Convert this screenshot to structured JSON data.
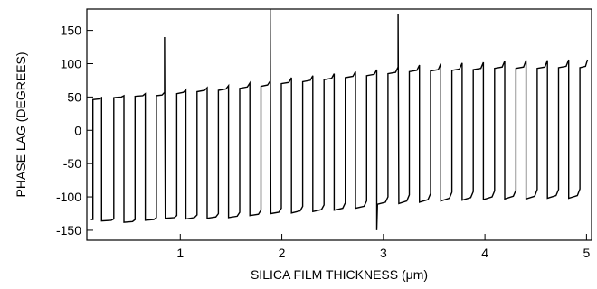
{
  "chart_data": {
    "type": "line",
    "title": "",
    "xlabel": "SILICA FILM THICKNESS (μm)",
    "ylabel": "PHASE LAG (DEGREES)",
    "xlim": [
      0.08,
      5.05
    ],
    "ylim": [
      -165,
      182
    ],
    "xticks": [
      1,
      2,
      3,
      4,
      5
    ],
    "yticks": [
      150,
      100,
      50,
      0,
      -50,
      -100,
      -150
    ],
    "grid": false,
    "legend": "none",
    "line_color": "#000000",
    "series": [
      {
        "values": [
          {
            "x": 0.12,
            "y": -134
          },
          {
            "x": 0.14,
            "y": -134
          },
          {
            "x": 0.14,
            "y": 46
          },
          {
            "x": 0.2,
            "y": 47
          },
          {
            "x": 0.225,
            "y": 49
          },
          {
            "x": 0.225,
            "y": -136
          },
          {
            "x": 0.32,
            "y": -135
          },
          {
            "x": 0.345,
            "y": -133
          },
          {
            "x": 0.345,
            "y": 49
          },
          {
            "x": 0.42,
            "y": 50
          },
          {
            "x": 0.445,
            "y": 52
          },
          {
            "x": 0.445,
            "y": -138
          },
          {
            "x": 0.53,
            "y": -137
          },
          {
            "x": 0.555,
            "y": -134
          },
          {
            "x": 0.555,
            "y": 51
          },
          {
            "x": 0.63,
            "y": 52
          },
          {
            "x": 0.655,
            "y": 55
          },
          {
            "x": 0.655,
            "y": -135
          },
          {
            "x": 0.74,
            "y": -134
          },
          {
            "x": 0.765,
            "y": -131
          },
          {
            "x": 0.765,
            "y": 52
          },
          {
            "x": 0.82,
            "y": 53
          },
          {
            "x": 0.845,
            "y": 57
          },
          {
            "x": 0.845,
            "y": 140
          },
          {
            "x": 0.852,
            "y": -132
          },
          {
            "x": 0.94,
            "y": -131
          },
          {
            "x": 0.965,
            "y": -128
          },
          {
            "x": 0.965,
            "y": 55
          },
          {
            "x": 1.03,
            "y": 57
          },
          {
            "x": 1.055,
            "y": 61
          },
          {
            "x": 1.055,
            "y": -133
          },
          {
            "x": 1.14,
            "y": -131
          },
          {
            "x": 1.165,
            "y": -127
          },
          {
            "x": 1.165,
            "y": 58
          },
          {
            "x": 1.24,
            "y": 60
          },
          {
            "x": 1.265,
            "y": 64
          },
          {
            "x": 1.265,
            "y": -132
          },
          {
            "x": 1.35,
            "y": -130
          },
          {
            "x": 1.375,
            "y": -125
          },
          {
            "x": 1.375,
            "y": 60
          },
          {
            "x": 1.45,
            "y": 62
          },
          {
            "x": 1.475,
            "y": 67
          },
          {
            "x": 1.475,
            "y": -131
          },
          {
            "x": 1.56,
            "y": -129
          },
          {
            "x": 1.585,
            "y": -123
          },
          {
            "x": 1.585,
            "y": 63
          },
          {
            "x": 1.66,
            "y": 65
          },
          {
            "x": 1.685,
            "y": 71
          },
          {
            "x": 1.685,
            "y": -128
          },
          {
            "x": 1.77,
            "y": -126
          },
          {
            "x": 1.795,
            "y": -120
          },
          {
            "x": 1.795,
            "y": 66
          },
          {
            "x": 1.86,
            "y": 68
          },
          {
            "x": 1.885,
            "y": 74
          },
          {
            "x": 1.885,
            "y": 182
          },
          {
            "x": 1.892,
            "y": -125
          },
          {
            "x": 1.97,
            "y": -123
          },
          {
            "x": 1.995,
            "y": -117
          },
          {
            "x": 1.995,
            "y": 70
          },
          {
            "x": 2.07,
            "y": 72
          },
          {
            "x": 2.095,
            "y": 79
          },
          {
            "x": 2.095,
            "y": -124
          },
          {
            "x": 2.18,
            "y": -121
          },
          {
            "x": 2.205,
            "y": -114
          },
          {
            "x": 2.205,
            "y": 73
          },
          {
            "x": 2.28,
            "y": 75
          },
          {
            "x": 2.305,
            "y": 82
          },
          {
            "x": 2.305,
            "y": -122
          },
          {
            "x": 2.39,
            "y": -119
          },
          {
            "x": 2.415,
            "y": -112
          },
          {
            "x": 2.415,
            "y": 76
          },
          {
            "x": 2.49,
            "y": 78
          },
          {
            "x": 2.515,
            "y": 85
          },
          {
            "x": 2.515,
            "y": -120
          },
          {
            "x": 2.6,
            "y": -117
          },
          {
            "x": 2.625,
            "y": -109
          },
          {
            "x": 2.625,
            "y": 79
          },
          {
            "x": 2.7,
            "y": 81
          },
          {
            "x": 2.725,
            "y": 88
          },
          {
            "x": 2.725,
            "y": -117
          },
          {
            "x": 2.81,
            "y": -114
          },
          {
            "x": 2.835,
            "y": -106
          },
          {
            "x": 2.835,
            "y": 82
          },
          {
            "x": 2.91,
            "y": 84
          },
          {
            "x": 2.935,
            "y": 91
          },
          {
            "x": 2.935,
            "y": -150
          },
          {
            "x": 2.942,
            "y": -111
          },
          {
            "x": 3.02,
            "y": -108
          },
          {
            "x": 3.045,
            "y": -100
          },
          {
            "x": 3.045,
            "y": 85
          },
          {
            "x": 3.12,
            "y": 87
          },
          {
            "x": 3.145,
            "y": 95
          },
          {
            "x": 3.145,
            "y": 175
          },
          {
            "x": 3.152,
            "y": -110
          },
          {
            "x": 3.23,
            "y": -106
          },
          {
            "x": 3.255,
            "y": -97
          },
          {
            "x": 3.255,
            "y": 88
          },
          {
            "x": 3.33,
            "y": 90
          },
          {
            "x": 3.355,
            "y": 98
          },
          {
            "x": 3.355,
            "y": -108
          },
          {
            "x": 3.44,
            "y": -104
          },
          {
            "x": 3.465,
            "y": -95
          },
          {
            "x": 3.465,
            "y": 89
          },
          {
            "x": 3.54,
            "y": 91
          },
          {
            "x": 3.565,
            "y": 100
          },
          {
            "x": 3.565,
            "y": -106
          },
          {
            "x": 3.65,
            "y": -102
          },
          {
            "x": 3.675,
            "y": -93
          },
          {
            "x": 3.675,
            "y": 90
          },
          {
            "x": 3.75,
            "y": 92
          },
          {
            "x": 3.775,
            "y": 101
          },
          {
            "x": 3.775,
            "y": -105
          },
          {
            "x": 3.86,
            "y": -101
          },
          {
            "x": 3.885,
            "y": -92
          },
          {
            "x": 3.885,
            "y": 91
          },
          {
            "x": 3.96,
            "y": 93
          },
          {
            "x": 3.985,
            "y": 102
          },
          {
            "x": 3.985,
            "y": -104
          },
          {
            "x": 4.07,
            "y": -100
          },
          {
            "x": 4.095,
            "y": -91
          },
          {
            "x": 4.095,
            "y": 93
          },
          {
            "x": 4.17,
            "y": 95
          },
          {
            "x": 4.195,
            "y": 104
          },
          {
            "x": 4.195,
            "y": -103
          },
          {
            "x": 4.28,
            "y": -99
          },
          {
            "x": 4.305,
            "y": -90
          },
          {
            "x": 4.305,
            "y": 93
          },
          {
            "x": 4.38,
            "y": 95
          },
          {
            "x": 4.405,
            "y": 105
          },
          {
            "x": 4.405,
            "y": -103
          },
          {
            "x": 4.49,
            "y": -99
          },
          {
            "x": 4.515,
            "y": -89
          },
          {
            "x": 4.515,
            "y": 93
          },
          {
            "x": 4.59,
            "y": 95
          },
          {
            "x": 4.615,
            "y": 105
          },
          {
            "x": 4.615,
            "y": -102
          },
          {
            "x": 4.7,
            "y": -98
          },
          {
            "x": 4.725,
            "y": -89
          },
          {
            "x": 4.725,
            "y": 94
          },
          {
            "x": 4.8,
            "y": 96
          },
          {
            "x": 4.825,
            "y": 106
          },
          {
            "x": 4.825,
            "y": -102
          },
          {
            "x": 4.91,
            "y": -98
          },
          {
            "x": 4.935,
            "y": -88
          },
          {
            "x": 4.935,
            "y": 94
          },
          {
            "x": 4.99,
            "y": 96
          },
          {
            "x": 5.01,
            "y": 106
          }
        ]
      }
    ]
  }
}
